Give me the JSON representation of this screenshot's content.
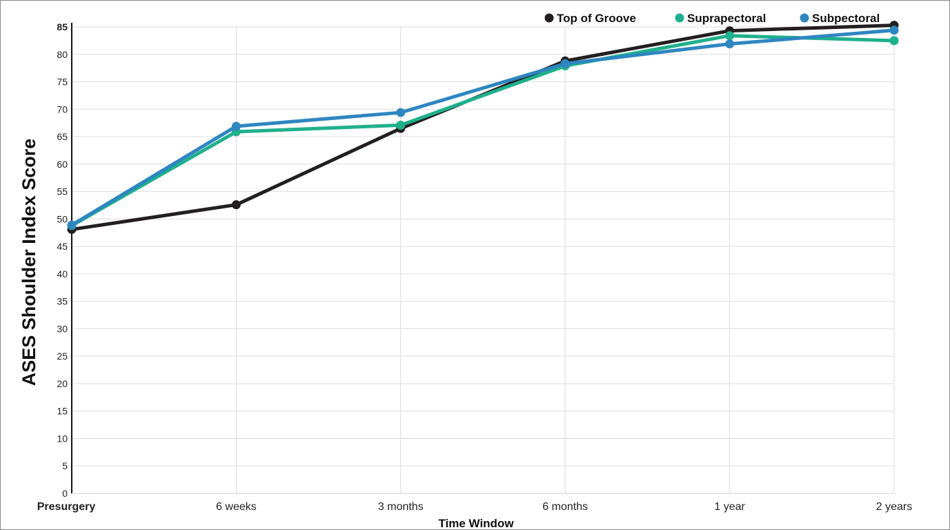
{
  "chart_data": {
    "type": "line",
    "title": "",
    "xlabel": "Time Window",
    "ylabel": "ASES Shoulder Index Score",
    "categories": [
      "Presurgery",
      "6 weeks",
      "3 months",
      "6 months",
      "1 year",
      "2 years"
    ],
    "ylim": [
      0,
      85
    ],
    "yticks": [
      0,
      5,
      10,
      15,
      20,
      25,
      30,
      35,
      40,
      45,
      50,
      55,
      60,
      65,
      70,
      75,
      80,
      85
    ],
    "grid": true,
    "legend_position": "top-right",
    "series": [
      {
        "name": "Top of Groove",
        "color": "#231f20",
        "values": [
          48.1,
          52.6,
          66.5,
          78.8,
          84.3,
          85.3
        ]
      },
      {
        "name": "Suprapectoral",
        "color": "#1fb08c",
        "values": [
          48.8,
          65.9,
          67.1,
          77.9,
          83.4,
          82.5
        ]
      },
      {
        "name": "Subpectoral",
        "color": "#2e86c1",
        "values": [
          48.9,
          66.9,
          69.4,
          78.3,
          81.9,
          84.4
        ]
      }
    ]
  }
}
